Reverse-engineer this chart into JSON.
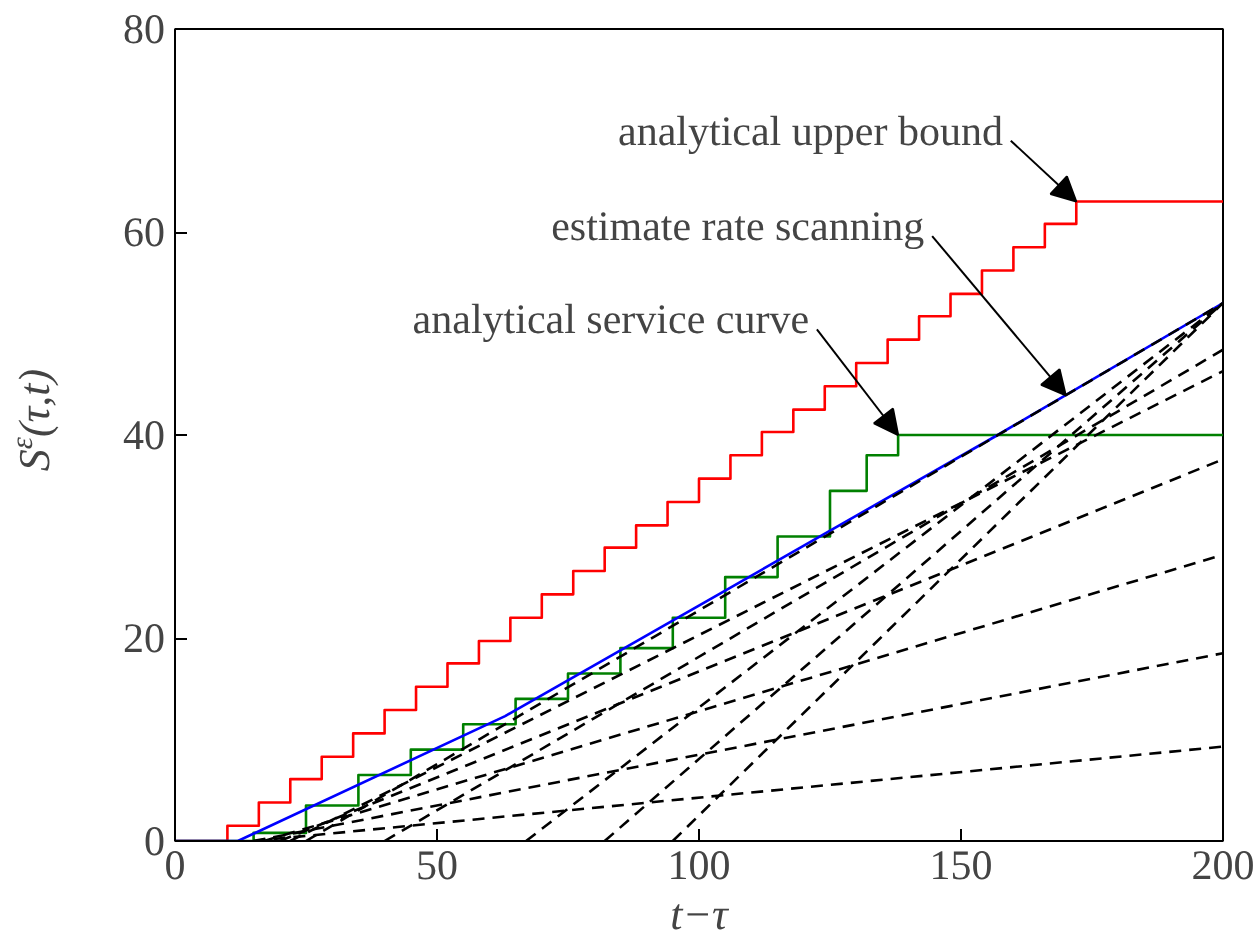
{
  "chart_data": {
    "type": "line",
    "xlabel": "t−τ",
    "ylabel": "S$^{ε}$(τ,t)",
    "xlim": [
      0,
      200
    ],
    "ylim": [
      0,
      80
    ],
    "xticks": [
      0,
      50,
      100,
      150,
      200
    ],
    "yticks": [
      0,
      20,
      40,
      60,
      80
    ],
    "grid": false,
    "marker": "none",
    "series": [
      {
        "type": "step",
        "color": "#ff0000",
        "x": [
          0,
          10,
          16,
          22,
          28,
          34,
          40,
          46,
          52,
          58,
          64,
          70,
          76,
          82,
          88,
          94,
          100,
          106,
          112,
          118,
          124,
          130,
          136,
          142,
          148,
          154,
          160,
          166,
          172,
          200
        ],
        "values": [
          0,
          1.5,
          3.8,
          6.1,
          8.3,
          10.6,
          12.9,
          15.2,
          17.5,
          19.7,
          22.0,
          24.3,
          26.6,
          28.9,
          31.1,
          33.4,
          35.7,
          38.0,
          40.3,
          42.5,
          44.8,
          47.1,
          49.4,
          51.7,
          53.9,
          56.2,
          58.5,
          60.8,
          63.0,
          63.0
        ]
      },
      {
        "type": "step",
        "color": "#008000",
        "x": [
          0,
          15,
          25,
          35,
          45,
          55,
          65,
          75,
          85,
          95,
          105,
          115,
          125,
          132,
          138,
          200
        ],
        "values": [
          0,
          0.8,
          3.5,
          6.5,
          9,
          11.5,
          14,
          16.5,
          19,
          22,
          26,
          30,
          34.5,
          38,
          40,
          40
        ]
      },
      {
        "color": "#0000ff",
        "x": [
          0,
          12,
          63,
          157,
          200
        ],
        "values": [
          0,
          0,
          12.3,
          40,
          53
        ]
      },
      {
        "line_style": "dashed",
        "color": "#000000",
        "x": [
          15,
          200
        ],
        "values": [
          0,
          9.3
        ]
      },
      {
        "line_style": "dashed",
        "color": "#000000",
        "x": [
          15,
          200
        ],
        "values": [
          0,
          18.5
        ]
      },
      {
        "line_style": "dashed",
        "color": "#000000",
        "x": [
          17,
          200
        ],
        "values": [
          0,
          28.2
        ]
      },
      {
        "line_style": "dashed",
        "color": "#000000",
        "x": [
          20,
          200
        ],
        "values": [
          0,
          37.6
        ]
      },
      {
        "line_style": "dashed",
        "color": "#000000",
        "x": [
          22,
          200
        ],
        "values": [
          0,
          46.3
        ]
      },
      {
        "line_style": "dashed",
        "color": "#000000",
        "x": [
          25,
          200
        ],
        "values": [
          0,
          53
        ]
      },
      {
        "line_style": "dashed",
        "color": "#000000",
        "x": [
          40,
          200
        ],
        "values": [
          0,
          48.4
        ]
      },
      {
        "line_style": "dashed",
        "color": "#000000",
        "x": [
          67,
          200
        ],
        "values": [
          0,
          53
        ]
      },
      {
        "line_style": "dashed",
        "color": "#000000",
        "x": [
          82,
          200
        ],
        "values": [
          0,
          53
        ]
      },
      {
        "line_style": "dashed",
        "color": "#000000",
        "x": [
          95,
          200
        ],
        "values": [
          0,
          53
        ]
      }
    ],
    "annotations": [
      {
        "text": "analytical upper bound",
        "x": 172,
        "y": 63
      },
      {
        "text": "estimate rate scanning",
        "x": 170,
        "y": 43.9
      },
      {
        "text": "analytical service curve",
        "x": 138,
        "y": 40
      }
    ]
  }
}
